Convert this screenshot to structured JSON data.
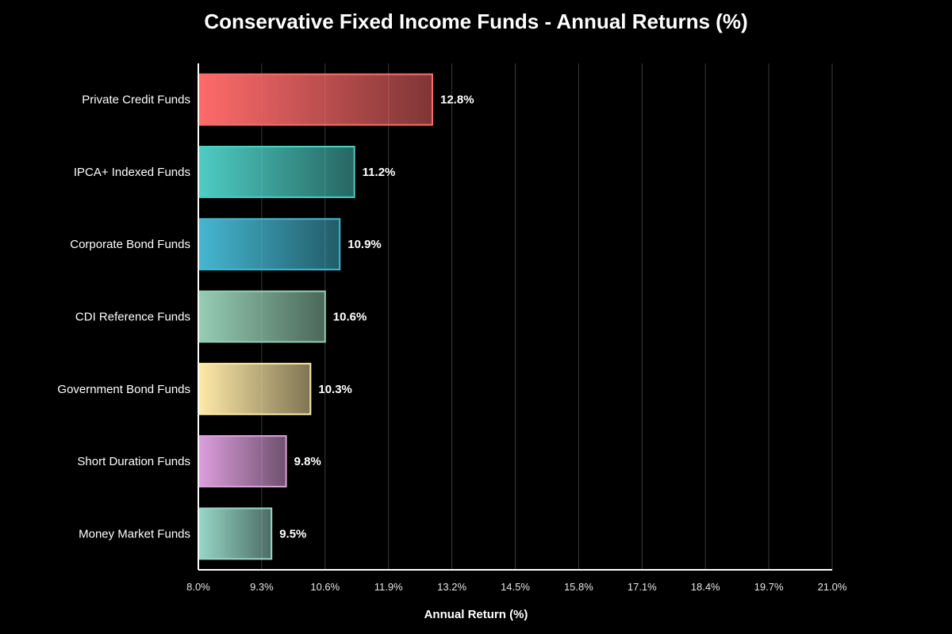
{
  "chart_data": {
    "type": "bar",
    "orientation": "horizontal",
    "title": "Conservative Fixed Income Funds - Annual Returns (%)",
    "xlabel": "Annual Return (%)",
    "ylabel": "",
    "xlim": [
      8.0,
      21.0
    ],
    "x_ticks": [
      "8.0%",
      "9.3%",
      "10.6%",
      "11.9%",
      "13.2%",
      "14.5%",
      "15.8%",
      "17.1%",
      "18.4%",
      "19.7%",
      "21.0%"
    ],
    "grid": "vertical",
    "categories": [
      "Private Credit Funds",
      "IPCA+ Indexed Funds",
      "Corporate Bond Funds",
      "CDI Reference Funds",
      "Government Bond Funds",
      "Short Duration Funds",
      "Money Market Funds"
    ],
    "values": [
      12.8,
      11.2,
      10.9,
      10.6,
      10.3,
      9.8,
      9.5
    ],
    "data_labels": [
      "12.8%",
      "11.2%",
      "10.9%",
      "10.6%",
      "10.3%",
      "9.8%",
      "9.5%"
    ],
    "colors": [
      "#ff6b6b",
      "#4ecdc4",
      "#45b7d1",
      "#96ceb4",
      "#ffeaa7",
      "#dda0dd",
      "#98d8c8"
    ]
  }
}
